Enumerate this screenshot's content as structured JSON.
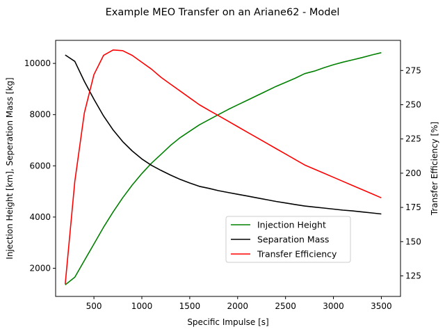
{
  "chart_data": {
    "type": "line",
    "title": "Example MEO Transfer on an Ariane62 - Model",
    "xlabel": "Specific Impulse [s]",
    "ylabel_left": "Injection Height [km], Seperation Mass [kg]",
    "ylabel_right": "Transfer Efficiency [%]",
    "xlim": [
      100,
      3700
    ],
    "ylim_left": [
      900,
      10900
    ],
    "ylim_right": [
      110,
      297
    ],
    "x_ticks": [
      500,
      1000,
      1500,
      2000,
      2500,
      3000,
      3500
    ],
    "y_ticks_left": [
      2000,
      4000,
      6000,
      8000,
      10000
    ],
    "y_ticks_right": [
      125,
      150,
      175,
      200,
      225,
      250,
      275
    ],
    "grid": false,
    "legend_position": "lower-right",
    "series": [
      {
        "name": "Injection Height",
        "axis": "left",
        "color": "#008000",
        "x": [
          200,
          300,
          400,
          500,
          600,
          700,
          800,
          900,
          1000,
          1100,
          1200,
          1300,
          1400,
          1500,
          1600,
          1700,
          1800,
          1900,
          2000,
          2100,
          2200,
          2300,
          2400,
          2500,
          2600,
          2700,
          2800,
          2900,
          3000,
          3100,
          3200,
          3300,
          3400,
          3500
        ],
        "y": [
          1350,
          1650,
          2300,
          2950,
          3600,
          4200,
          4750,
          5250,
          5700,
          6100,
          6450,
          6800,
          7100,
          7350,
          7600,
          7800,
          8000,
          8200,
          8380,
          8560,
          8740,
          8920,
          9100,
          9260,
          9420,
          9600,
          9700,
          9830,
          9950,
          10050,
          10140,
          10230,
          10330,
          10420
        ]
      },
      {
        "name": "Separation Mass",
        "axis": "left",
        "color": "#000000",
        "x": [
          200,
          300,
          400,
          500,
          600,
          700,
          800,
          900,
          1000,
          1100,
          1200,
          1300,
          1400,
          1500,
          1600,
          1700,
          1800,
          1900,
          2000,
          2100,
          2200,
          2300,
          2400,
          2500,
          2600,
          2700,
          2800,
          2900,
          3000,
          3100,
          3200,
          3300,
          3400,
          3500
        ],
        "y": [
          10330,
          10080,
          9300,
          8600,
          7950,
          7400,
          6950,
          6580,
          6270,
          6020,
          5820,
          5640,
          5470,
          5330,
          5200,
          5120,
          5030,
          4960,
          4890,
          4820,
          4750,
          4680,
          4610,
          4550,
          4490,
          4430,
          4390,
          4350,
          4310,
          4270,
          4240,
          4200,
          4160,
          4120
        ]
      },
      {
        "name": "Transfer Efficiency",
        "axis": "right",
        "color": "#ff0000",
        "x": [
          200,
          300,
          400,
          500,
          600,
          700,
          800,
          900,
          1000,
          1100,
          1200,
          1300,
          1400,
          1500,
          1600,
          1700,
          1800,
          1900,
          2000,
          2100,
          2200,
          2300,
          2400,
          2500,
          2600,
          2700,
          2800,
          2900,
          3000,
          3100,
          3200,
          3300,
          3400,
          3500
        ],
        "y": [
          119,
          194,
          244,
          272,
          286,
          290,
          289.5,
          286,
          281,
          276,
          270,
          265,
          260,
          255,
          250,
          246,
          242,
          238,
          234,
          230,
          226,
          222,
          218,
          214,
          210,
          206,
          203,
          200,
          197,
          194,
          191,
          188,
          185,
          182
        ]
      }
    ]
  }
}
